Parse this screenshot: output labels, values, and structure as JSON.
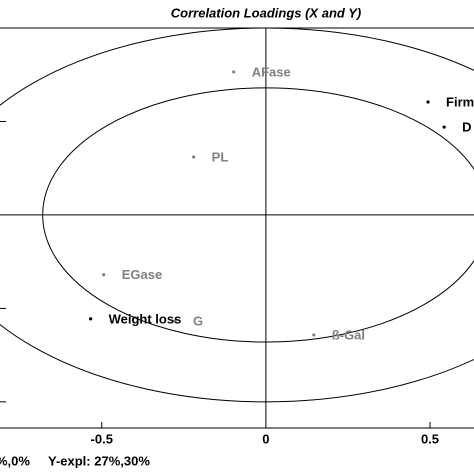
{
  "chart_data": {
    "type": "scatter",
    "title": "Correlation Loadings (X and Y)",
    "points": [
      {
        "label": "AFase",
        "x": -0.098,
        "y": 0.765,
        "color": "#808080"
      },
      {
        "label": "Firm",
        "x": 0.494,
        "y": 0.604,
        "color": "#000000"
      },
      {
        "label": "D",
        "x": 0.543,
        "y": 0.47,
        "color": "#000000"
      },
      {
        "label": "PL",
        "x": -0.22,
        "y": 0.31,
        "color": "#808080"
      },
      {
        "label": "EGase",
        "x": -0.494,
        "y": -0.32,
        "color": "#808080"
      },
      {
        "label": "G",
        "x": -0.277,
        "y": -0.567,
        "color": "#808080"
      },
      {
        "label": "Weight loss",
        "x": -0.534,
        "y": -0.556,
        "color": "#000000"
      },
      {
        "label": "ß-Gal",
        "x": 0.146,
        "y": -0.642,
        "color": "#808080"
      }
    ],
    "ellipses": [
      1,
      0.68
    ],
    "xlim": [
      -0.81,
      0.634
    ],
    "ylim": [
      -1.14,
      1.0
    ],
    "xticks": [
      -0.5,
      0,
      0.5
    ],
    "yticks": [
      -1,
      -0.5,
      0,
      0.5,
      1
    ],
    "footer": [
      "%,0%",
      "Y-expl: 27%,30%"
    ]
  }
}
